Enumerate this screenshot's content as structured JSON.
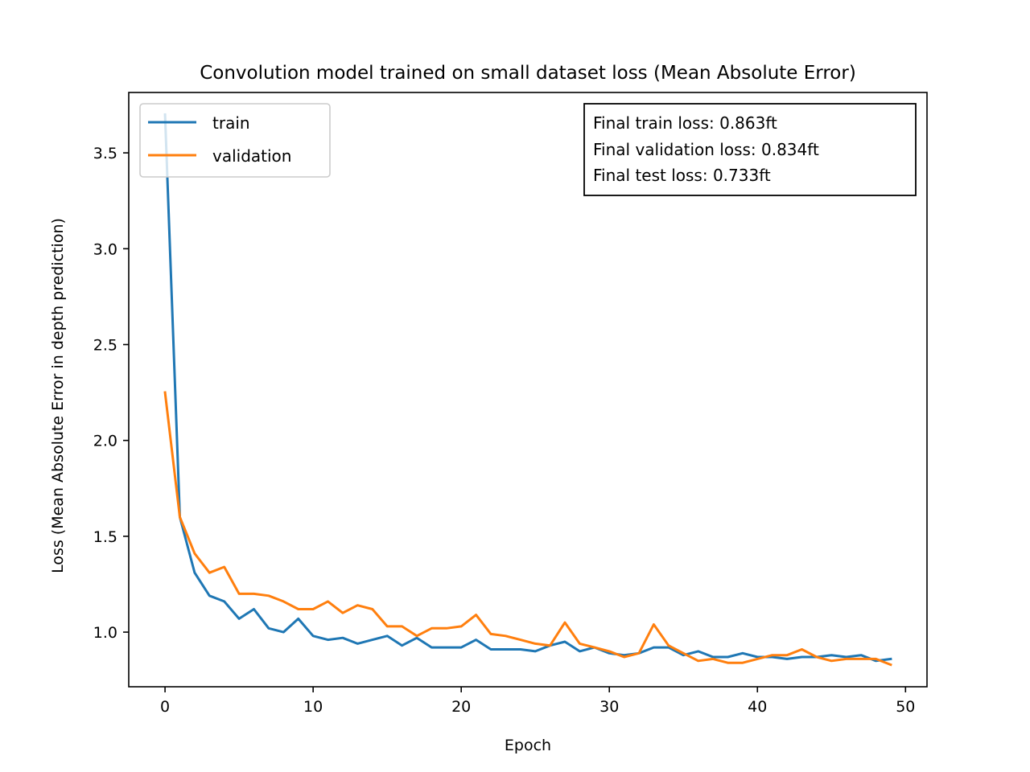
{
  "chart_data": {
    "type": "line",
    "title": "Convolution model trained on small dataset loss (Mean Absolute Error)",
    "xlabel": "Epoch",
    "ylabel": "Loss (Mean Absolute Error in depth prediction)",
    "xlim": [
      -2.45,
      51.45
    ],
    "ylim": [
      0.715,
      3.815
    ],
    "xticks": [
      0,
      10,
      20,
      30,
      40,
      50
    ],
    "xtick_labels": [
      "0",
      "10",
      "20",
      "30",
      "40",
      "50"
    ],
    "yticks": [
      1.0,
      1.5,
      2.0,
      2.5,
      3.0,
      3.5
    ],
    "ytick_labels": [
      "1.0",
      "1.5",
      "2.0",
      "2.5",
      "3.0",
      "3.5"
    ],
    "grid": false,
    "legend_position": "upper left",
    "series": [
      {
        "name": "train",
        "color": "#1f77b4",
        "x": [
          0,
          1,
          2,
          3,
          4,
          5,
          6,
          7,
          8,
          9,
          10,
          11,
          12,
          13,
          14,
          15,
          16,
          17,
          18,
          19,
          20,
          21,
          22,
          23,
          24,
          25,
          26,
          27,
          28,
          29,
          30,
          31,
          32,
          33,
          34,
          35,
          36,
          37,
          38,
          39,
          40,
          41,
          42,
          43,
          44,
          45,
          46,
          47,
          48,
          49
        ],
        "values": [
          3.7,
          1.6,
          1.31,
          1.19,
          1.16,
          1.07,
          1.12,
          1.02,
          1.0,
          1.07,
          0.98,
          0.96,
          0.97,
          0.94,
          0.96,
          0.98,
          0.93,
          0.97,
          0.92,
          0.92,
          0.92,
          0.96,
          0.91,
          0.91,
          0.91,
          0.9,
          0.93,
          0.95,
          0.9,
          0.92,
          0.89,
          0.88,
          0.89,
          0.92,
          0.92,
          0.88,
          0.9,
          0.87,
          0.87,
          0.89,
          0.87,
          0.87,
          0.86,
          0.87,
          0.87,
          0.88,
          0.87,
          0.88,
          0.85,
          0.86
        ]
      },
      {
        "name": "validation",
        "color": "#ff7f0e",
        "x": [
          0,
          1,
          2,
          3,
          4,
          5,
          6,
          7,
          8,
          9,
          10,
          11,
          12,
          13,
          14,
          15,
          16,
          17,
          18,
          19,
          20,
          21,
          22,
          23,
          24,
          25,
          26,
          27,
          28,
          29,
          30,
          31,
          32,
          33,
          34,
          35,
          36,
          37,
          38,
          39,
          40,
          41,
          42,
          43,
          44,
          45,
          46,
          47,
          48,
          49
        ],
        "values": [
          2.25,
          1.6,
          1.41,
          1.31,
          1.34,
          1.2,
          1.2,
          1.19,
          1.16,
          1.12,
          1.12,
          1.16,
          1.1,
          1.14,
          1.12,
          1.03,
          1.03,
          0.98,
          1.02,
          1.02,
          1.03,
          1.09,
          0.99,
          0.98,
          0.96,
          0.94,
          0.93,
          1.05,
          0.94,
          0.92,
          0.9,
          0.87,
          0.89,
          1.04,
          0.93,
          0.89,
          0.85,
          0.86,
          0.84,
          0.84,
          0.86,
          0.88,
          0.88,
          0.91,
          0.87,
          0.85,
          0.86,
          0.86,
          0.86,
          0.83
        ]
      }
    ],
    "annotation": {
      "lines": [
        "Final train loss: 0.863ft",
        "Final validation loss: 0.834ft",
        "Final test loss: 0.733ft"
      ],
      "position": "upper right"
    }
  }
}
